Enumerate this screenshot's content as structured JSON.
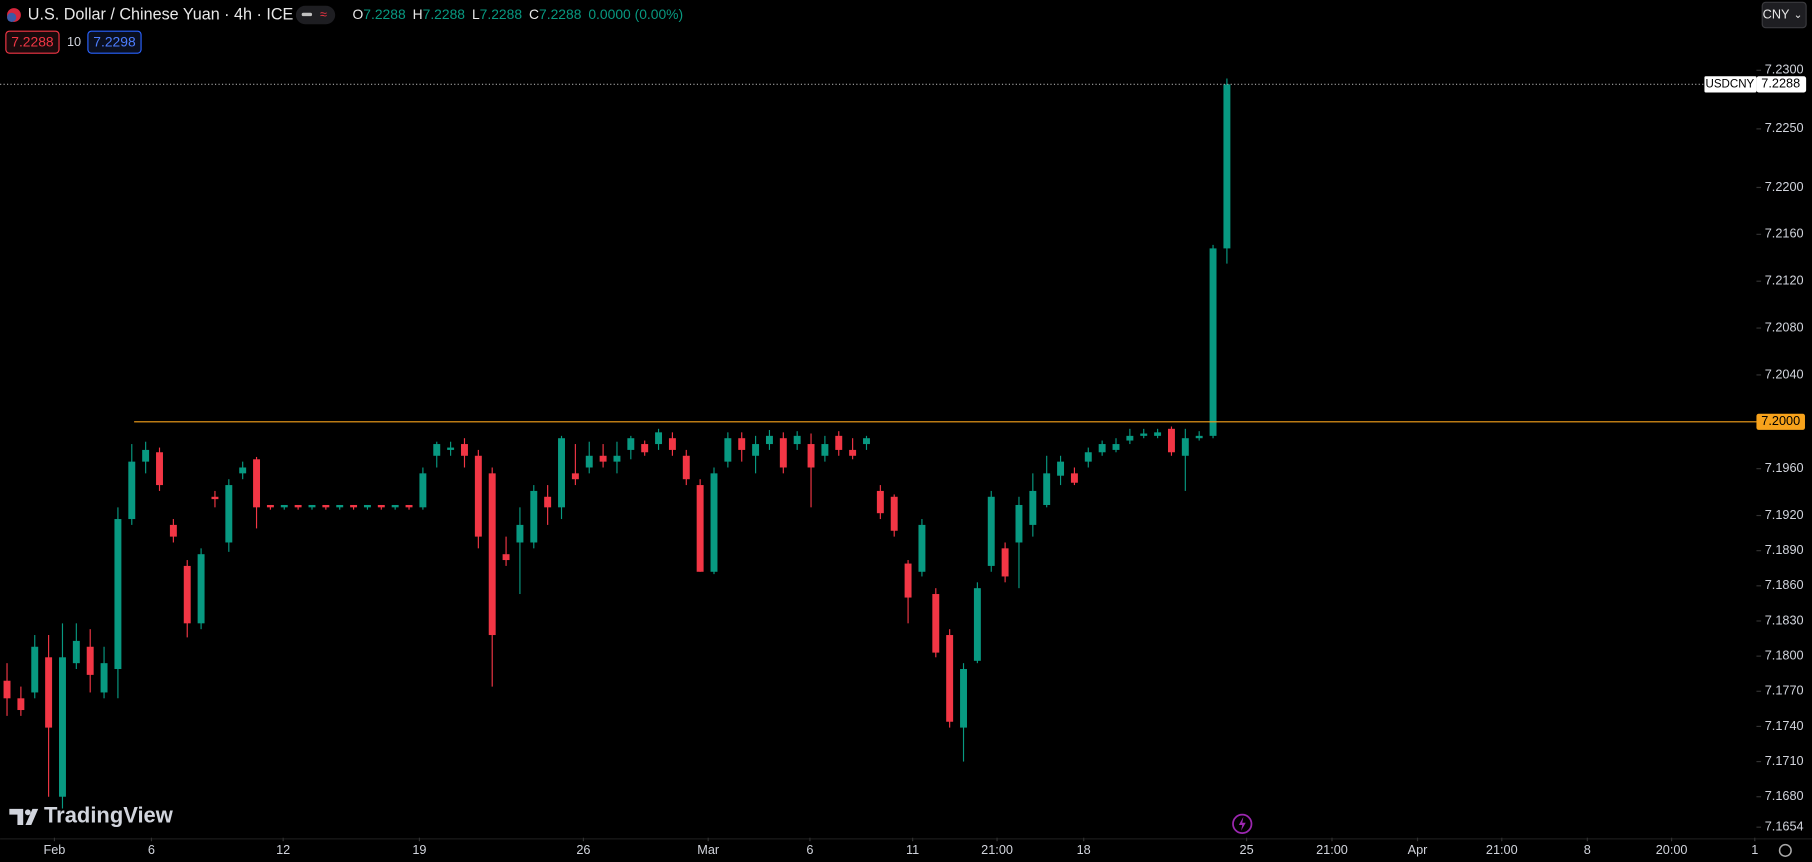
{
  "header": {
    "title": "U.S. Dollar / Chinese Yuan · 4h · ICE",
    "legend": [
      {
        "label": "O",
        "value": "7.2288"
      },
      {
        "label": "H",
        "value": "7.2288"
      },
      {
        "label": "L",
        "value": "7.2288"
      },
      {
        "label": "C",
        "value": "7.2288"
      }
    ],
    "change": "0.0000 (0.00%)",
    "sell": "7.2288",
    "spread": "10",
    "buy": "7.2298",
    "currency": "CNY",
    "logo": "TradingView"
  },
  "chart_data": {
    "type": "candlestick",
    "up_color": "#089981",
    "down_color": "#f23645",
    "open": [
      7.1779,
      7.1764,
      7.1769,
      7.1799,
      7.168,
      7.1794,
      7.1808,
      7.1769,
      7.1789,
      7.1917,
      7.1966,
      7.1974,
      7.1912,
      7.1877,
      7.1828,
      7.1936,
      7.1897,
      7.1956,
      7.1968,
      7.1929,
      7.1927,
      7.1929,
      7.1927,
      7.1929,
      7.1927,
      7.1929,
      7.1927,
      7.1929,
      7.1927,
      7.1929,
      7.1927,
      7.1971,
      7.1976,
      7.1981,
      7.1971,
      7.1956,
      7.1887,
      7.1897,
      7.1897,
      7.1936,
      7.1927,
      7.1956,
      7.1961,
      7.1971,
      7.1966,
      7.1976,
      7.1981,
      7.1981,
      7.1986,
      7.1971,
      7.1946,
      7.1872,
      7.1966,
      7.1986,
      7.1971,
      7.1981,
      7.1986,
      7.1981,
      7.1981,
      7.1971,
      7.1988,
      7.1976,
      7.1981,
      7.1941,
      7.1936,
      7.1879,
      7.1872,
      7.1853,
      7.1818,
      7.1739,
      7.1796,
      7.1877,
      7.1892,
      7.1897,
      7.1912,
      7.1929,
      7.1954,
      7.1956,
      7.1966,
      7.1974,
      7.1976,
      7.1984,
      7.1988,
      7.1988,
      7.1994,
      7.1971,
      7.1986,
      7.1988,
      7.2148
    ],
    "high": [
      7.1794,
      7.1774,
      7.1818,
      7.1818,
      7.1828,
      7.1828,
      7.1823,
      7.1808,
      7.1927,
      7.1981,
      7.1983,
      7.1978,
      7.1917,
      7.1882,
      7.1892,
      7.1941,
      7.1951,
      7.1966,
      7.197,
      7.1929,
      7.1929,
      7.1929,
      7.1929,
      7.1929,
      7.1929,
      7.1929,
      7.1929,
      7.1929,
      7.1929,
      7.1929,
      7.1961,
      7.1983,
      7.1983,
      7.1986,
      7.1976,
      7.1961,
      7.1902,
      7.1927,
      7.1946,
      7.1946,
      7.1988,
      7.1981,
      7.1983,
      7.1981,
      7.1983,
      7.1988,
      7.1984,
      7.1994,
      7.1991,
      7.1976,
      7.1951,
      7.1961,
      7.1991,
      7.1991,
      7.1988,
      7.1993,
      7.1991,
      7.1992,
      7.199,
      7.1988,
      7.1992,
      7.1986,
      7.1988,
      7.1946,
      7.1938,
      7.1882,
      7.1917,
      7.1858,
      7.1823,
      7.1794,
      7.1863,
      7.1941,
      7.1897,
      7.1936,
      7.1956,
      7.1971,
      7.1971,
      7.1961,
      7.1978,
      7.1984,
      7.1986,
      7.1994,
      7.1994,
      7.1994,
      7.1996,
      7.1994,
      7.1992,
      7.2151,
      7.2293
    ],
    "low": [
      7.1749,
      7.1749,
      7.1764,
      7.168,
      7.167,
      7.1789,
      7.1769,
      7.1764,
      7.1764,
      7.1912,
      7.1956,
      7.1941,
      7.1897,
      7.1816,
      7.1823,
      7.1927,
      7.1889,
      7.1951,
      7.1909,
      7.1925,
      7.1925,
      7.1925,
      7.1925,
      7.1925,
      7.1925,
      7.1925,
      7.1925,
      7.1925,
      7.1925,
      7.1925,
      7.1925,
      7.1961,
      7.1971,
      7.1961,
      7.1892,
      7.1774,
      7.1877,
      7.1853,
      7.1892,
      7.1912,
      7.1917,
      7.1946,
      7.1956,
      7.1961,
      7.1956,
      7.1968,
      7.1971,
      7.1976,
      7.1971,
      7.1946,
      7.1872,
      7.187,
      7.1961,
      7.1966,
      7.1956,
      7.1976,
      7.1956,
      7.1976,
      7.1927,
      7.1966,
      7.1971,
      7.1968,
      7.1976,
      7.1917,
      7.1902,
      7.1828,
      7.1868,
      7.1799,
      7.1739,
      7.171,
      7.1794,
      7.1872,
      7.1863,
      7.1858,
      7.1902,
      7.1927,
      7.1946,
      7.1946,
      7.1961,
      7.1971,
      7.1974,
      7.1981,
      7.1986,
      7.1986,
      7.1971,
      7.1941,
      7.1984,
      7.1986,
      7.2135
    ],
    "close": [
      7.1764,
      7.1754,
      7.1808,
      7.1739,
      7.1799,
      7.1813,
      7.1784,
      7.1794,
      7.1917,
      7.1966,
      7.1976,
      7.1946,
      7.1902,
      7.1828,
      7.1887,
      7.1934,
      7.1946,
      7.1961,
      7.1927,
      7.1927,
      7.1929,
      7.1927,
      7.1929,
      7.1927,
      7.1929,
      7.1927,
      7.1929,
      7.1927,
      7.1929,
      7.1927,
      7.1956,
      7.1981,
      7.1978,
      7.1971,
      7.1902,
      7.1818,
      7.1882,
      7.1912,
      7.1941,
      7.1927,
      7.1986,
      7.1951,
      7.1971,
      7.1966,
      7.1971,
      7.1986,
      7.1974,
      7.1991,
      7.1976,
      7.1951,
      7.1872,
      7.1956,
      7.1986,
      7.1976,
      7.1981,
      7.1988,
      7.1961,
      7.1988,
      7.1961,
      7.1981,
      7.1976,
      7.1971,
      7.1986,
      7.1922,
      7.1907,
      7.185,
      7.1912,
      7.1803,
      7.1744,
      7.1789,
      7.1858,
      7.1936,
      7.1868,
      7.1929,
      7.1941,
      7.1956,
      7.1966,
      7.1948,
      7.1974,
      7.1981,
      7.1981,
      7.1988,
      7.199,
      7.1991,
      7.1974,
      7.1986,
      7.1988,
      7.2148,
      7.2288
    ],
    "xlim": [
      -0.5,
      126.2
    ],
    "xticks": [
      {
        "value": 3.42,
        "label": "Feb"
      },
      {
        "value": 10.42,
        "label": "6"
      },
      {
        "value": 19.92,
        "label": "12"
      },
      {
        "value": 29.75,
        "label": "19"
      },
      {
        "value": 41.58,
        "label": "26"
      },
      {
        "value": 50.58,
        "label": "Mar"
      },
      {
        "value": 57.92,
        "label": "6"
      },
      {
        "value": 65.33,
        "label": "11"
      },
      {
        "value": 71.42,
        "label": "21:00"
      },
      {
        "value": 77.67,
        "label": "18"
      },
      {
        "value": 89.42,
        "label": "25"
      },
      {
        "value": 95.58,
        "label": "21:00"
      },
      {
        "value": 101.75,
        "label": "Apr"
      },
      {
        "value": 107.83,
        "label": "21:00"
      },
      {
        "value": 114,
        "label": "8"
      },
      {
        "value": 120.08,
        "label": "20:00"
      },
      {
        "value": 126.08,
        "label": "1"
      }
    ],
    "ylim": [
      7.1645,
      7.236
    ],
    "yticks": [
      {
        "value": 7.23,
        "label": "7.2300"
      },
      {
        "value": 7.225,
        "label": "7.2250"
      },
      {
        "value": 7.22,
        "label": "7.2200"
      },
      {
        "value": 7.216,
        "label": "7.2160"
      },
      {
        "value": 7.212,
        "label": "7.2120"
      },
      {
        "value": 7.208,
        "label": "7.2080"
      },
      {
        "value": 7.204,
        "label": "7.2040"
      },
      {
        "value": 7.2,
        "label": "7.2000"
      },
      {
        "value": 7.196,
        "label": "7.1960"
      },
      {
        "value": 7.192,
        "label": "7.1920"
      },
      {
        "value": 7.189,
        "label": "7.1890"
      },
      {
        "value": 7.186,
        "label": "7.1860"
      },
      {
        "value": 7.183,
        "label": "7.1830"
      },
      {
        "value": 7.18,
        "label": "7.1800"
      },
      {
        "value": 7.177,
        "label": "7.1770"
      },
      {
        "value": 7.174,
        "label": "7.1740"
      },
      {
        "value": 7.171,
        "label": "7.1710"
      },
      {
        "value": 7.168,
        "label": "7.1680"
      },
      {
        "value": 7.1654,
        "label": "7.1654"
      }
    ],
    "grid": false,
    "hline": {
      "value": 7.2,
      "label": "7.2000",
      "color": "#f7a21b"
    },
    "last": {
      "symbol": "USDCNY",
      "value": 7.2288,
      "label": "7.2288"
    }
  }
}
